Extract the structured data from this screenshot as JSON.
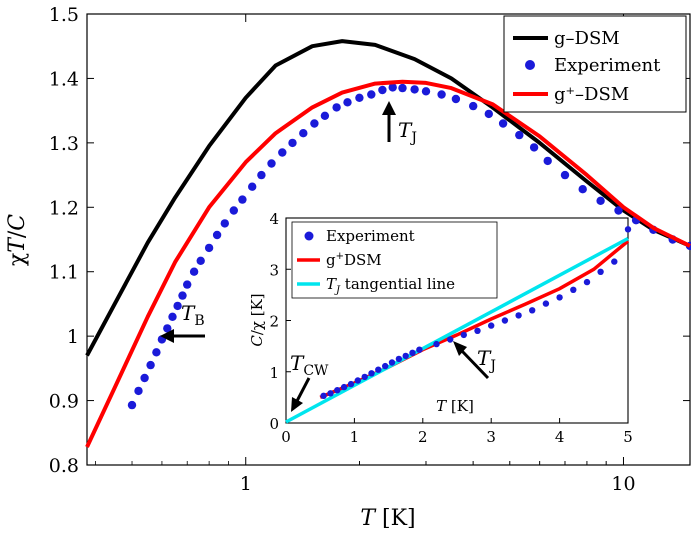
{
  "chart_data": [
    {
      "type": "line",
      "xscale": "log",
      "xlim": [
        0.38,
        15
      ],
      "ylim": [
        0.8,
        1.5
      ],
      "xlabel": "T [K]",
      "ylabel": "χT/C",
      "xticks": [
        {
          "value": 1,
          "label": "1"
        },
        {
          "value": 10,
          "label": "10"
        }
      ],
      "yticks": [
        0.8,
        0.9,
        1,
        1.1,
        1.2,
        1.3,
        1.4,
        1.5
      ],
      "ytick_labels": [
        "0.8",
        "0.9",
        "1",
        "1.1",
        "1.2",
        "1.3",
        "1.4",
        "1.5"
      ],
      "legend_position": "top-right",
      "series": [
        {
          "name": "g–DSM",
          "kind": "line",
          "color": "#000000",
          "points": [
            [
              0.38,
              0.97
            ],
            [
              0.45,
              1.05
            ],
            [
              0.55,
              1.145
            ],
            [
              0.65,
              1.215
            ],
            [
              0.8,
              1.295
            ],
            [
              1.0,
              1.37
            ],
            [
              1.2,
              1.42
            ],
            [
              1.5,
              1.45
            ],
            [
              1.8,
              1.458
            ],
            [
              2.2,
              1.452
            ],
            [
              2.8,
              1.43
            ],
            [
              3.5,
              1.4
            ],
            [
              4.5,
              1.355
            ],
            [
              6,
              1.3
            ],
            [
              8,
              1.24
            ],
            [
              10,
              1.195
            ],
            [
              12,
              1.165
            ],
            [
              15,
              1.14
            ]
          ]
        },
        {
          "name": "Experiment",
          "kind": "scatter",
          "color": "#1a1ad9",
          "points": [
            [
              0.5,
              0.893
            ],
            [
              0.52,
              0.915
            ],
            [
              0.54,
              0.935
            ],
            [
              0.56,
              0.955
            ],
            [
              0.58,
              0.975
            ],
            [
              0.6,
              0.995
            ],
            [
              0.62,
              1.012
            ],
            [
              0.64,
              1.03
            ],
            [
              0.66,
              1.047
            ],
            [
              0.68,
              1.063
            ],
            [
              0.7,
              1.08
            ],
            [
              0.73,
              1.1
            ],
            [
              0.76,
              1.117
            ],
            [
              0.8,
              1.137
            ],
            [
              0.84,
              1.157
            ],
            [
              0.88,
              1.175
            ],
            [
              0.93,
              1.195
            ],
            [
              0.98,
              1.212
            ],
            [
              1.04,
              1.232
            ],
            [
              1.1,
              1.25
            ],
            [
              1.17,
              1.268
            ],
            [
              1.25,
              1.285
            ],
            [
              1.33,
              1.3
            ],
            [
              1.42,
              1.315
            ],
            [
              1.52,
              1.33
            ],
            [
              1.62,
              1.342
            ],
            [
              1.74,
              1.355
            ],
            [
              1.86,
              1.363
            ],
            [
              2.0,
              1.37
            ],
            [
              2.15,
              1.375
            ],
            [
              2.3,
              1.382
            ],
            [
              2.45,
              1.386
            ],
            [
              2.6,
              1.385
            ],
            [
              2.8,
              1.383
            ],
            [
              3.0,
              1.38
            ],
            [
              3.3,
              1.375
            ],
            [
              3.6,
              1.368
            ],
            [
              4.0,
              1.357
            ],
            [
              4.4,
              1.345
            ],
            [
              4.8,
              1.33
            ],
            [
              5.3,
              1.312
            ],
            [
              5.8,
              1.293
            ],
            [
              6.3,
              1.272
            ],
            [
              7.0,
              1.25
            ],
            [
              7.8,
              1.228
            ],
            [
              8.7,
              1.21
            ],
            [
              9.7,
              1.195
            ],
            [
              10.8,
              1.18
            ],
            [
              12,
              1.165
            ],
            [
              13.5,
              1.15
            ],
            [
              15,
              1.14
            ]
          ]
        },
        {
          "name": "g⁺–DSM",
          "kind": "line",
          "color": "#ff0000",
          "points": [
            [
              0.38,
              0.828
            ],
            [
              0.45,
              0.92
            ],
            [
              0.55,
              1.03
            ],
            [
              0.65,
              1.115
            ],
            [
              0.8,
              1.2
            ],
            [
              1.0,
              1.27
            ],
            [
              1.2,
              1.315
            ],
            [
              1.5,
              1.355
            ],
            [
              1.8,
              1.378
            ],
            [
              2.2,
              1.392
            ],
            [
              2.6,
              1.395
            ],
            [
              3.0,
              1.393
            ],
            [
              3.5,
              1.385
            ],
            [
              4.5,
              1.36
            ],
            [
              6,
              1.31
            ],
            [
              8,
              1.25
            ],
            [
              10,
              1.2
            ],
            [
              12,
              1.168
            ],
            [
              15,
              1.14
            ]
          ]
        }
      ],
      "annotations": [
        {
          "label": "T",
          "subscript": "J",
          "x": 2.6,
          "y": 1.335
        },
        {
          "label": "T",
          "subscript": "B",
          "x": 0.72,
          "y": 1.005
        }
      ]
    },
    {
      "type": "line",
      "position": "inset",
      "xlim": [
        0,
        5
      ],
      "ylim": [
        0,
        4
      ],
      "xlabel": "T [K]",
      "ylabel": "C/χ [K]",
      "xticks": [
        0,
        1,
        2,
        3,
        4,
        5
      ],
      "xtick_labels": [
        "0",
        "1",
        "2",
        "3",
        "4",
        "5"
      ],
      "yticks": [
        0,
        1,
        2,
        3,
        4
      ],
      "ytick_labels": [
        "0",
        "1",
        "2",
        "3",
        "4"
      ],
      "legend_position": "top-left",
      "series": [
        {
          "name": "Experiment",
          "kind": "scatter",
          "color": "#1a1ad9",
          "points": [
            [
              0.55,
              0.53
            ],
            [
              0.65,
              0.58
            ],
            [
              0.75,
              0.64
            ],
            [
              0.85,
              0.7
            ],
            [
              0.95,
              0.76
            ],
            [
              1.05,
              0.83
            ],
            [
              1.15,
              0.9
            ],
            [
              1.25,
              0.97
            ],
            [
              1.35,
              1.04
            ],
            [
              1.45,
              1.11
            ],
            [
              1.55,
              1.18
            ],
            [
              1.65,
              1.25
            ],
            [
              1.75,
              1.31
            ],
            [
              1.85,
              1.37
            ],
            [
              1.95,
              1.43
            ],
            [
              2.2,
              1.54
            ],
            [
              2.4,
              1.63
            ],
            [
              2.6,
              1.72
            ],
            [
              2.8,
              1.8
            ],
            [
              3.0,
              1.9
            ],
            [
              3.2,
              2.0
            ],
            [
              3.4,
              2.1
            ],
            [
              3.6,
              2.2
            ],
            [
              3.8,
              2.33
            ],
            [
              4.0,
              2.45
            ],
            [
              4.2,
              2.6
            ],
            [
              4.4,
              2.75
            ],
            [
              4.6,
              2.95
            ],
            [
              4.8,
              3.15
            ],
            [
              5.0,
              3.78
            ]
          ]
        },
        {
          "name": "g⁺DSM",
          "kind": "line",
          "color": "#ff0000",
          "points": [
            [
              0.5,
              0.5
            ],
            [
              1,
              0.78
            ],
            [
              1.5,
              1.09
            ],
            [
              2,
              1.43
            ],
            [
              2.5,
              1.72
            ],
            [
              3,
              2.03
            ],
            [
              3.5,
              2.32
            ],
            [
              4,
              2.62
            ],
            [
              4.5,
              3.0
            ],
            [
              5,
              3.55
            ]
          ]
        },
        {
          "name": "T_J tangential line",
          "kind": "line",
          "color": "#00e5ee",
          "points": [
            [
              0,
              0.02
            ],
            [
              5,
              3.6
            ]
          ]
        }
      ],
      "annotations": [
        {
          "label": "T",
          "subscript": "CW",
          "x": 0.05,
          "y": 0.05
        },
        {
          "label": "T",
          "subscript": "J",
          "x": 2.35,
          "y": 1.62
        }
      ]
    }
  ]
}
